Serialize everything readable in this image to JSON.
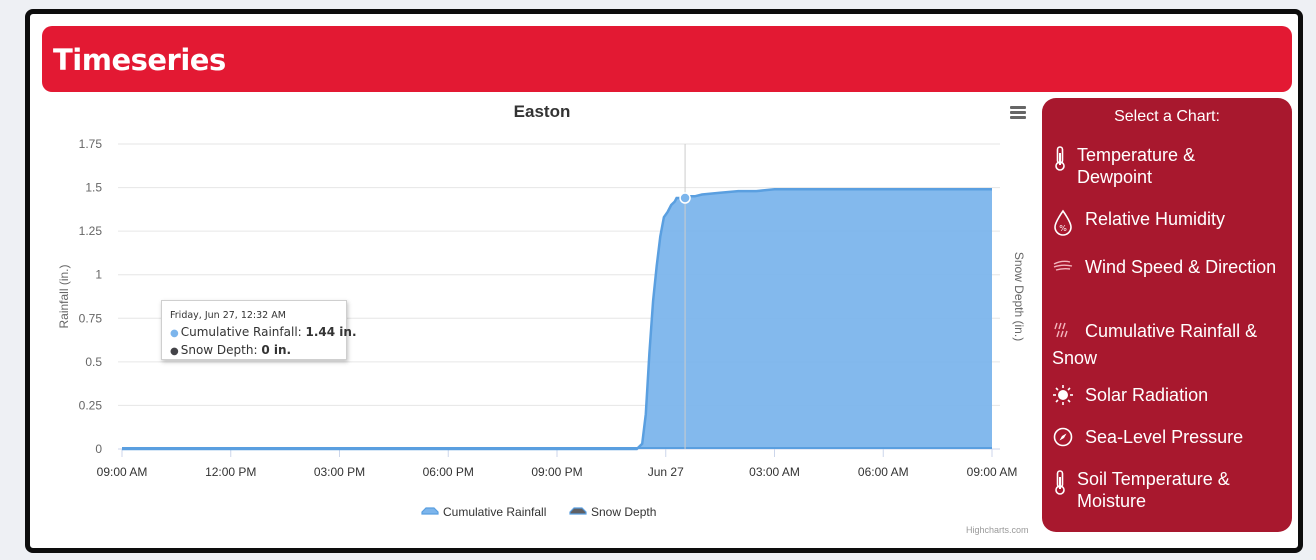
{
  "header": {
    "title": "Timeseries"
  },
  "chart_data": {
    "type": "area",
    "title": "Easton",
    "ylabel": "Rainfall (in.)",
    "y2label": "Snow Depth (in.)",
    "ylim": [
      0,
      1.75
    ],
    "yticks": [
      "0",
      "0.25",
      "0.5",
      "0.75",
      "1",
      "1.25",
      "1.5",
      "1.75"
    ],
    "xlim": [
      0,
      24
    ],
    "xticks": [
      {
        "x": 0,
        "label": "09:00 AM"
      },
      {
        "x": 3,
        "label": "12:00 PM"
      },
      {
        "x": 6,
        "label": "03:00 PM"
      },
      {
        "x": 9,
        "label": "06:00 PM"
      },
      {
        "x": 12,
        "label": "09:00 PM"
      },
      {
        "x": 15,
        "label": "Jun 27"
      },
      {
        "x": 18,
        "label": "03:00 AM"
      },
      {
        "x": 21,
        "label": "06:00 AM"
      },
      {
        "x": 24,
        "label": "09:00 AM"
      }
    ],
    "grid": true,
    "legend_position": "bottom",
    "series": [
      {
        "name": "Cumulative Rainfall",
        "color": "#7cb5ec",
        "line_color": "#5a9fe0",
        "x": [
          0,
          14.2,
          14.35,
          14.45,
          14.55,
          14.65,
          14.75,
          14.85,
          14.95,
          15.05,
          15.15,
          15.25,
          15.3,
          15.45,
          15.55,
          15.8,
          16.0,
          16.5,
          17.0,
          17.5,
          18.0,
          20.0,
          24.0
        ],
        "values": [
          0,
          0,
          0.03,
          0.2,
          0.55,
          0.85,
          1.05,
          1.22,
          1.33,
          1.36,
          1.4,
          1.42,
          1.44,
          1.44,
          1.45,
          1.45,
          1.46,
          1.47,
          1.48,
          1.48,
          1.49,
          1.49,
          1.49
        ]
      },
      {
        "name": "Snow Depth",
        "color": "#434348",
        "x": [
          0,
          24
        ],
        "values": [
          0,
          0
        ]
      }
    ],
    "tooltip": {
      "date": "Friday, Jun 27, 12:32 AM",
      "x": 15.533,
      "rain_label": "Cumulative Rainfall: ",
      "rain_value": "1.44 in.",
      "snow_label": "Snow Depth: ",
      "snow_value": "0 in."
    },
    "credit": "Highcharts.com"
  },
  "sidebar": {
    "title": "Select a Chart:",
    "items": [
      {
        "label": "Temperature & Dewpoint",
        "icon": "thermometer-icon"
      },
      {
        "label": "Relative Humidity",
        "icon": "humidity-drop-icon"
      },
      {
        "label": "Wind Speed & Direction",
        "icon": "wind-icon"
      },
      {
        "label": "Cumulative Rainfall & Snow",
        "icon": "rain-icon"
      },
      {
        "label": "Solar Radiation",
        "icon": "sun-icon"
      },
      {
        "label": "Sea-Level Pressure",
        "icon": "compass-icon"
      },
      {
        "label": "Soil Temperature & Moisture",
        "icon": "thermometer-icon"
      }
    ]
  }
}
